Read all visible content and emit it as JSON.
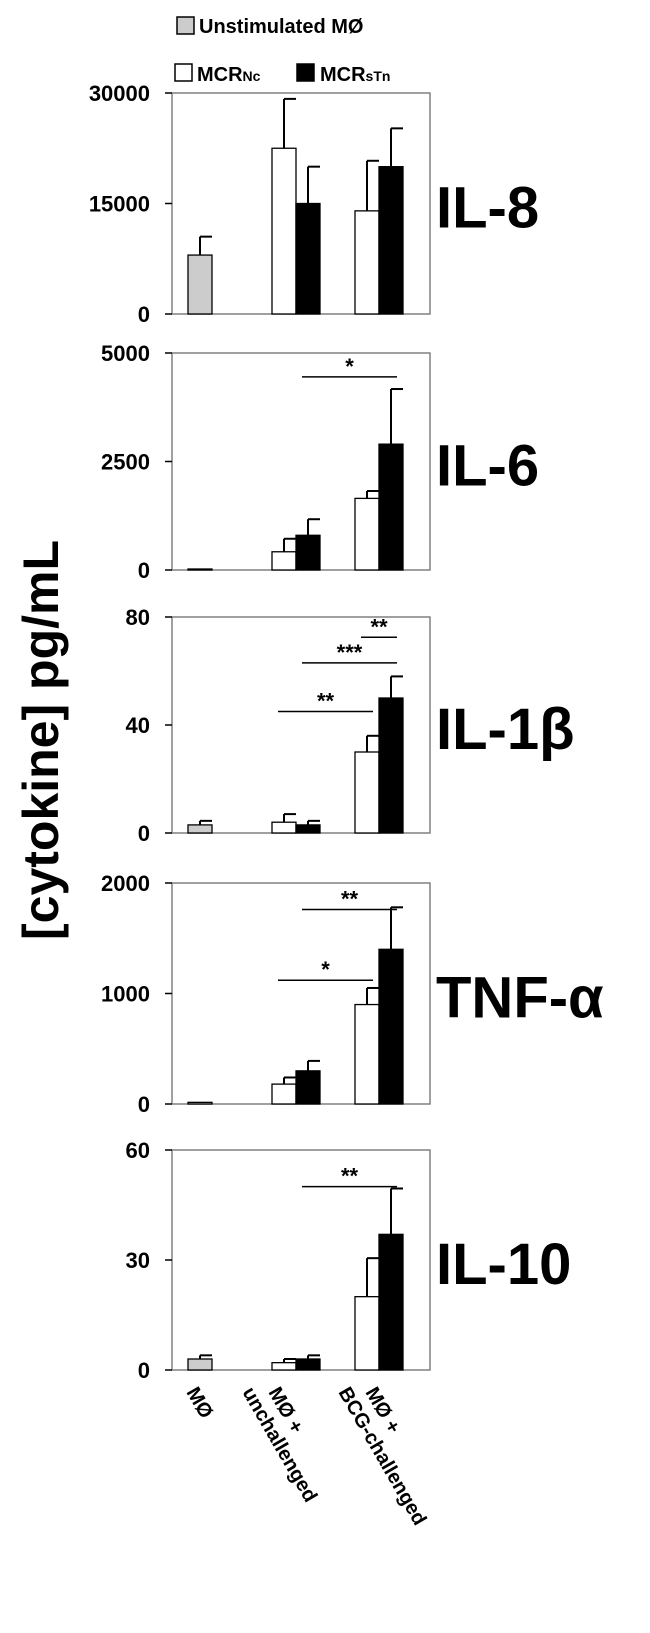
{
  "legend": {
    "unstimulated": "Unstimulated MØ",
    "ncr_prefix": "MCR",
    "ncr_sub": "Nc",
    "stn_prefix": "MCR",
    "stn_sub": "sTn"
  },
  "colors": {
    "unstimulated": "#cccccc",
    "ncr": "#ffffff",
    "stn": "#000000",
    "axis": "#000000"
  },
  "y_axis_label": "[cytokine] pg/mL",
  "x_labels": [
    "MØ",
    "unchallenged",
    "MØ +",
    "BCG-challenged",
    "MØ +"
  ],
  "chart_data": [
    {
      "type": "bar",
      "title": "IL-8",
      "ylim": [
        0,
        30000
      ],
      "yticks": [
        0,
        15000,
        30000
      ],
      "ytick_labels": [
        "0",
        "15000",
        "30000"
      ],
      "series": [
        {
          "name": "Unstimulated MØ",
          "key": "unstimulated",
          "values": [
            8000,
            null,
            null
          ],
          "errors": [
            2500,
            null,
            null
          ]
        },
        {
          "name": "MCRNc",
          "key": "ncr",
          "values": [
            null,
            22500,
            14000
          ],
          "errors": [
            null,
            6700,
            6800
          ]
        },
        {
          "name": "MCRsTn",
          "key": "stn",
          "values": [
            null,
            15000,
            20000
          ],
          "errors": [
            null,
            5000,
            5200
          ]
        }
      ],
      "significance": []
    },
    {
      "type": "bar",
      "title": "IL-6",
      "ylim": [
        0,
        5000
      ],
      "yticks": [
        0,
        2500,
        5000
      ],
      "ytick_labels": [
        "0",
        "2500",
        "5000"
      ],
      "series": [
        {
          "name": "Unstimulated MØ",
          "key": "unstimulated",
          "values": [
            20,
            null,
            null
          ],
          "errors": [
            0,
            null,
            null
          ]
        },
        {
          "name": "MCRNc",
          "key": "ncr",
          "values": [
            null,
            420,
            1650
          ],
          "errors": [
            null,
            300,
            170
          ]
        },
        {
          "name": "MCRsTn",
          "key": "stn",
          "values": [
            null,
            800,
            2900
          ],
          "errors": [
            null,
            370,
            1270
          ]
        }
      ],
      "significance": [
        {
          "from": [
            "g1",
            "stn"
          ],
          "to": [
            "g2",
            "stn"
          ],
          "value": 4450,
          "label": "*"
        }
      ]
    },
    {
      "type": "bar",
      "title": "IL-1β",
      "ylim": [
        0,
        80
      ],
      "yticks": [
        0,
        40,
        80
      ],
      "ytick_labels": [
        "0",
        "40",
        "80"
      ],
      "series": [
        {
          "name": "Unstimulated MØ",
          "key": "unstimulated",
          "values": [
            3,
            null,
            null
          ],
          "errors": [
            1.5,
            null,
            null
          ]
        },
        {
          "name": "MCRNc",
          "key": "ncr",
          "values": [
            null,
            4,
            30
          ],
          "errors": [
            null,
            3,
            6
          ]
        },
        {
          "name": "MCRsTn",
          "key": "stn",
          "values": [
            null,
            3,
            50
          ],
          "errors": [
            null,
            1.5,
            8
          ]
        }
      ],
      "significance": [
        {
          "from": [
            "g2",
            "ncr"
          ],
          "to": [
            "g2",
            "stn"
          ],
          "value": 72.5,
          "label": "**"
        },
        {
          "from": [
            "g1",
            "stn"
          ],
          "to": [
            "g2",
            "stn"
          ],
          "value": 63,
          "label": "***"
        },
        {
          "from": [
            "g1",
            "ncr"
          ],
          "to": [
            "g2",
            "ncr"
          ],
          "value": 45,
          "label": "**"
        }
      ]
    },
    {
      "type": "bar",
      "title": "TNF-α",
      "ylim": [
        0,
        2000
      ],
      "yticks": [
        0,
        1000,
        2000
      ],
      "ytick_labels": [
        "0",
        "1000",
        "2000"
      ],
      "series": [
        {
          "name": "Unstimulated MØ",
          "key": "unstimulated",
          "values": [
            15,
            null,
            null
          ],
          "errors": [
            0,
            null,
            null
          ]
        },
        {
          "name": "MCRNc",
          "key": "ncr",
          "values": [
            null,
            180,
            900
          ],
          "errors": [
            null,
            60,
            150
          ]
        },
        {
          "name": "MCRsTn",
          "key": "stn",
          "values": [
            null,
            300,
            1400
          ],
          "errors": [
            null,
            90,
            380
          ]
        }
      ],
      "significance": [
        {
          "from": [
            "g1",
            "stn"
          ],
          "to": [
            "g2",
            "stn"
          ],
          "value": 1760,
          "label": "**"
        },
        {
          "from": [
            "g1",
            "ncr"
          ],
          "to": [
            "g2",
            "ncr"
          ],
          "value": 1120,
          "label": "*"
        }
      ]
    },
    {
      "type": "bar",
      "title": "IL-10",
      "ylim": [
        0,
        60
      ],
      "yticks": [
        0,
        30,
        60
      ],
      "ytick_labels": [
        "0",
        "30",
        "60"
      ],
      "series": [
        {
          "name": "Unstimulated MØ",
          "key": "unstimulated",
          "values": [
            3,
            null,
            null
          ],
          "errors": [
            1,
            null,
            null
          ]
        },
        {
          "name": "MCRNc",
          "key": "ncr",
          "values": [
            null,
            2,
            20
          ],
          "errors": [
            null,
            1,
            10.5
          ]
        },
        {
          "name": "MCRsTn",
          "key": "stn",
          "values": [
            null,
            3,
            37
          ],
          "errors": [
            null,
            1,
            12.5
          ]
        }
      ],
      "significance": [
        {
          "from": [
            "g1",
            "stn"
          ],
          "to": [
            "g2",
            "stn"
          ],
          "value": 50,
          "label": "**"
        }
      ]
    }
  ]
}
